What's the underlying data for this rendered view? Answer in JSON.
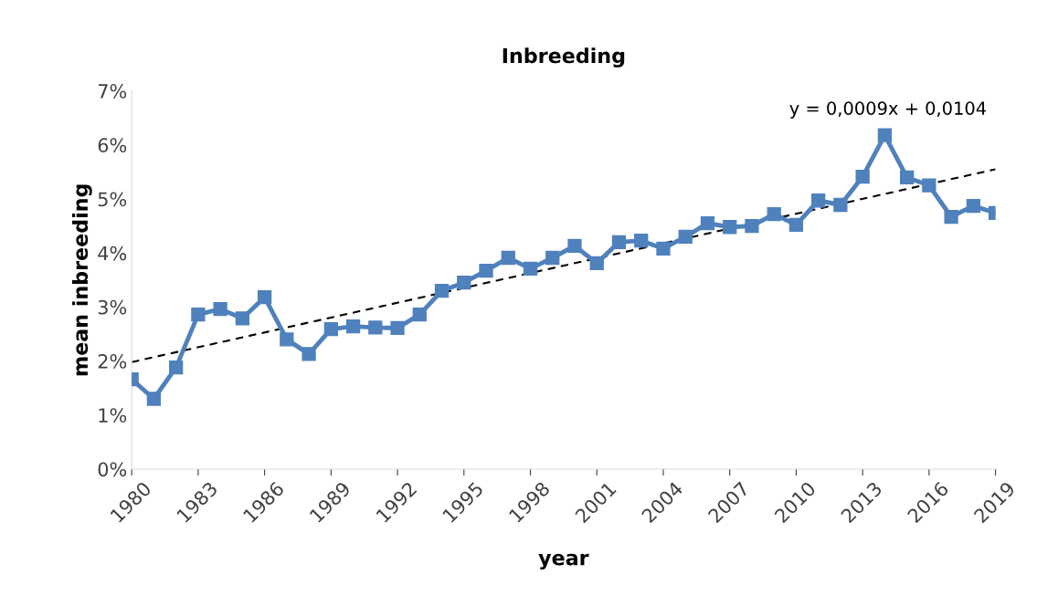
{
  "chart_data": {
    "type": "line",
    "title": "Inbreeding",
    "xlabel": "year",
    "ylabel": "mean inbreeding",
    "x": [
      1980,
      1981,
      1982,
      1983,
      1984,
      1985,
      1986,
      1987,
      1988,
      1989,
      1990,
      1991,
      1992,
      1993,
      1994,
      1995,
      1996,
      1997,
      1998,
      1999,
      2000,
      2001,
      2002,
      2003,
      2004,
      2005,
      2006,
      2007,
      2008,
      2009,
      2010,
      2011,
      2012,
      2013,
      2014,
      2015,
      2016,
      2017,
      2018,
      2019
    ],
    "series": [
      {
        "color": "#4f81bd",
        "marker": "square",
        "line_style": "solid",
        "values": [
          1.66,
          1.3,
          1.88,
          2.86,
          2.96,
          2.79,
          3.18,
          2.4,
          2.13,
          2.59,
          2.64,
          2.62,
          2.61,
          2.86,
          3.3,
          3.45,
          3.67,
          3.91,
          3.71,
          3.91,
          4.13,
          3.81,
          4.2,
          4.23,
          4.08,
          4.3,
          4.55,
          4.48,
          4.5,
          4.72,
          4.52,
          4.97,
          4.89,
          5.41,
          6.18,
          5.4,
          5.25,
          4.67,
          4.87,
          4.74
        ]
      },
      {
        "type": "line",
        "color": "#000000",
        "marker": "none",
        "line_style": "dashed",
        "x": [
          1980,
          2019
        ],
        "values": [
          1.98,
          5.55
        ]
      }
    ],
    "annotations": [
      "y = 0,0009x + 0,0104"
    ],
    "xlim": [
      1980,
      2019
    ],
    "xticks": [
      1980,
      1983,
      1986,
      1989,
      1992,
      1995,
      1998,
      2001,
      2004,
      2007,
      2010,
      2013,
      2016,
      2019
    ],
    "ylim": [
      0,
      7
    ],
    "yticks": [
      {
        "value": 0,
        "label": "0%"
      },
      {
        "value": 1,
        "label": "1%"
      },
      {
        "value": 2,
        "label": "2%"
      },
      {
        "value": 3,
        "label": "3%"
      },
      {
        "value": 4,
        "label": "4%"
      },
      {
        "value": 5,
        "label": "5%"
      },
      {
        "value": 6,
        "label": "6%"
      },
      {
        "value": 7,
        "label": "7%"
      }
    ],
    "grid": false,
    "legend": false
  }
}
